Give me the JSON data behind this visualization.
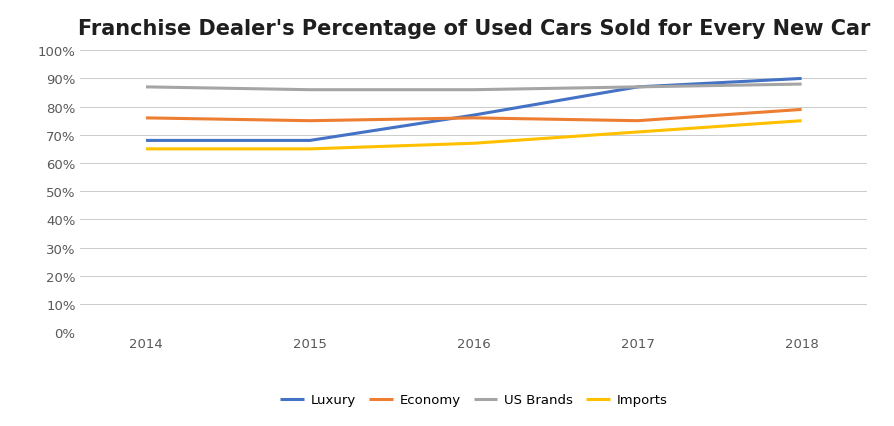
{
  "title": "Franchise Dealer's Percentage of Used Cars Sold for Every New Car",
  "years": [
    2014,
    2015,
    2016,
    2017,
    2018
  ],
  "series_order": [
    "Luxury",
    "Economy",
    "US Brands",
    "Imports"
  ],
  "series": {
    "Luxury": {
      "values": [
        0.68,
        0.68,
        0.77,
        0.87,
        0.9
      ],
      "color": "#4472C4",
      "linewidth": 2.2
    },
    "Economy": {
      "values": [
        0.76,
        0.75,
        0.76,
        0.75,
        0.79
      ],
      "color": "#ED7D31",
      "linewidth": 2.2
    },
    "US Brands": {
      "values": [
        0.87,
        0.86,
        0.86,
        0.87,
        0.88
      ],
      "color": "#A5A5A5",
      "linewidth": 2.2
    },
    "Imports": {
      "values": [
        0.65,
        0.65,
        0.67,
        0.71,
        0.75
      ],
      "color": "#FFC000",
      "linewidth": 2.2
    }
  },
  "ylim": [
    0.0,
    1.0
  ],
  "yticks": [
    0.0,
    0.1,
    0.2,
    0.3,
    0.4,
    0.5,
    0.6,
    0.7,
    0.8,
    0.9,
    1.0
  ],
  "background_color": "#FFFFFF",
  "grid_color": "#CCCCCC",
  "title_fontsize": 15,
  "tick_fontsize": 9.5,
  "legend_fontsize": 9.5,
  "tick_color": "#595959",
  "xlim": [
    2013.6,
    2018.4
  ]
}
